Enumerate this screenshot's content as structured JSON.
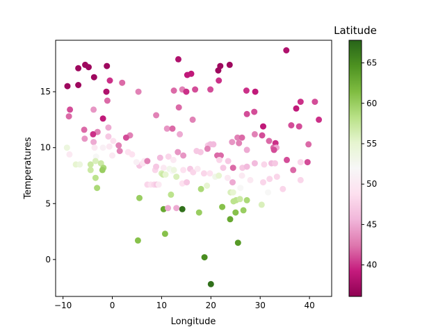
{
  "chart_data": {
    "type": "scatter",
    "xlabel": "Longitude",
    "ylabel": "Temperatures",
    "xlim": [
      -11.5,
      44.5
    ],
    "ylim": [
      -3.3,
      19.6
    ],
    "xticks": [
      -10,
      0,
      10,
      20,
      30,
      40
    ],
    "yticks": [
      0,
      5,
      10,
      15
    ],
    "grid": false,
    "colorbar": {
      "label": "Latitude",
      "cmap": "PiYG",
      "range": [
        36.1,
        67.8
      ],
      "ticks": [
        40,
        45,
        50,
        55,
        60,
        65
      ],
      "color_stops": [
        "#8e0152",
        "#c51b7d",
        "#de77ae",
        "#f1b6da",
        "#fde0ef",
        "#f7f7f7",
        "#e6f5d0",
        "#b8e186",
        "#7fbc41",
        "#4d9221",
        "#276419"
      ]
    },
    "points": [
      {
        "x": 35.3,
        "y": 18.7,
        "c": 38
      },
      {
        "x": 13.4,
        "y": 17.9,
        "c": 38
      },
      {
        "x": 23.8,
        "y": 17.4,
        "c": 37
      },
      {
        "x": 21.9,
        "y": 17.3,
        "c": 37
      },
      {
        "x": -5.5,
        "y": 17.4,
        "c": 37
      },
      {
        "x": -4.8,
        "y": 17.2,
        "c": 37
      },
      {
        "x": -6.9,
        "y": 17.1,
        "c": 37
      },
      {
        "x": -1.1,
        "y": 17.3,
        "c": 37
      },
      {
        "x": 21.5,
        "y": 16.9,
        "c": 37
      },
      {
        "x": 15.2,
        "y": 16.5,
        "c": 39
      },
      {
        "x": 16.0,
        "y": 16.6,
        "c": 39
      },
      {
        "x": -3.7,
        "y": 16.3,
        "c": 37
      },
      {
        "x": -0.5,
        "y": 16.0,
        "c": 40
      },
      {
        "x": 21.6,
        "y": 16.0,
        "c": 40
      },
      {
        "x": 2.0,
        "y": 15.8,
        "c": 42
      },
      {
        "x": -9.1,
        "y": 15.5,
        "c": 37
      },
      {
        "x": -6.9,
        "y": 15.6,
        "c": 37
      },
      {
        "x": 12.5,
        "y": 15.1,
        "c": 42
      },
      {
        "x": 14.2,
        "y": 15.2,
        "c": 43
      },
      {
        "x": 15.0,
        "y": 15.0,
        "c": 40
      },
      {
        "x": 16.8,
        "y": 15.2,
        "c": 41
      },
      {
        "x": 19.9,
        "y": 15.2,
        "c": 41
      },
      {
        "x": 27.2,
        "y": 15.1,
        "c": 40
      },
      {
        "x": 29.0,
        "y": 15.0,
        "c": 39
      },
      {
        "x": 5.3,
        "y": 15.0,
        "c": 43
      },
      {
        "x": -1.2,
        "y": 15.0,
        "c": 38
      },
      {
        "x": 38.2,
        "y": 14.1,
        "c": 40
      },
      {
        "x": 41.1,
        "y": 14.1,
        "c": 41
      },
      {
        "x": -1.0,
        "y": 14.2,
        "c": 42
      },
      {
        "x": 13.5,
        "y": 13.6,
        "c": 42
      },
      {
        "x": 37.3,
        "y": 13.5,
        "c": 39
      },
      {
        "x": -8.6,
        "y": 13.4,
        "c": 41
      },
      {
        "x": -3.8,
        "y": 13.4,
        "c": 44
      },
      {
        "x": 28.8,
        "y": 13.2,
        "c": 41
      },
      {
        "x": 27.3,
        "y": 13.0,
        "c": 41
      },
      {
        "x": 8.9,
        "y": 12.9,
        "c": 43
      },
      {
        "x": -8.8,
        "y": 12.8,
        "c": 42
      },
      {
        "x": -1.9,
        "y": 12.6,
        "c": 39
      },
      {
        "x": 16.3,
        "y": 12.5,
        "c": 43
      },
      {
        "x": 41.9,
        "y": 12.5,
        "c": 40
      },
      {
        "x": 36.3,
        "y": 12.0,
        "c": 41
      },
      {
        "x": 37.9,
        "y": 11.9,
        "c": 41
      },
      {
        "x": -0.8,
        "y": 11.8,
        "c": 45
      },
      {
        "x": 30.6,
        "y": 11.9,
        "c": 39
      },
      {
        "x": 11.1,
        "y": 11.7,
        "c": 44
      },
      {
        "x": 12.2,
        "y": 11.7,
        "c": 42
      },
      {
        "x": -5.7,
        "y": 11.6,
        "c": 42
      },
      {
        "x": -3.0,
        "y": 11.4,
        "c": 43
      },
      {
        "x": 13.7,
        "y": 11.2,
        "c": 45
      },
      {
        "x": -3.9,
        "y": 11.2,
        "c": 40
      },
      {
        "x": 3.6,
        "y": 11.1,
        "c": 43
      },
      {
        "x": 28.9,
        "y": 11.2,
        "c": 43
      },
      {
        "x": 25.4,
        "y": 10.9,
        "c": 43
      },
      {
        "x": 26.3,
        "y": 10.9,
        "c": 42
      },
      {
        "x": 30.4,
        "y": 11.1,
        "c": 41
      },
      {
        "x": 2.8,
        "y": 10.9,
        "c": 41
      },
      {
        "x": -0.8,
        "y": 11.0,
        "c": 47
      },
      {
        "x": 31.8,
        "y": 10.6,
        "c": 42
      },
      {
        "x": 25.7,
        "y": 10.4,
        "c": 43
      },
      {
        "x": 24.3,
        "y": 10.5,
        "c": 44
      },
      {
        "x": 33.1,
        "y": 10.4,
        "c": 40
      },
      {
        "x": 39.8,
        "y": 10.3,
        "c": 42
      },
      {
        "x": -5.6,
        "y": 10.8,
        "c": 44
      },
      {
        "x": 0.2,
        "y": 10.6,
        "c": 49
      },
      {
        "x": -3.8,
        "y": 10.5,
        "c": 45
      },
      {
        "x": 1.3,
        "y": 10.2,
        "c": 43
      },
      {
        "x": 19.4,
        "y": 10.2,
        "c": 47
      },
      {
        "x": 19.9,
        "y": 10.3,
        "c": 46
      },
      {
        "x": 20.5,
        "y": 10.3,
        "c": 46
      },
      {
        "x": 19.3,
        "y": 9.9,
        "c": 43
      },
      {
        "x": 32.7,
        "y": 10.0,
        "c": 42
      },
      {
        "x": 33.3,
        "y": 10.0,
        "c": 45
      },
      {
        "x": 32.8,
        "y": 9.8,
        "c": 41
      },
      {
        "x": 27.3,
        "y": 9.8,
        "c": 45
      },
      {
        "x": -9.2,
        "y": 10.0,
        "c": 54
      },
      {
        "x": -3.6,
        "y": 10.0,
        "c": 50
      },
      {
        "x": -1.9,
        "y": 10.0,
        "c": 51
      },
      {
        "x": -0.6,
        "y": 10.1,
        "c": 50
      },
      {
        "x": 1.5,
        "y": 9.7,
        "c": 43
      },
      {
        "x": 3.2,
        "y": 9.6,
        "c": 49
      },
      {
        "x": 17.1,
        "y": 9.7,
        "c": 47
      },
      {
        "x": 17.9,
        "y": 9.6,
        "c": 47
      },
      {
        "x": 13.3,
        "y": 9.6,
        "c": 44
      },
      {
        "x": 14.4,
        "y": 9.3,
        "c": 44
      },
      {
        "x": 21.3,
        "y": 9.3,
        "c": 42
      },
      {
        "x": 22.0,
        "y": 9.3,
        "c": 42
      },
      {
        "x": -8.7,
        "y": 9.4,
        "c": 50
      },
      {
        "x": -3.3,
        "y": 9.2,
        "c": 52
      },
      {
        "x": 0.0,
        "y": 9.3,
        "c": 50
      },
      {
        "x": 4.0,
        "y": 9.4,
        "c": 49
      },
      {
        "x": 9.7,
        "y": 9.1,
        "c": 46
      },
      {
        "x": 11.4,
        "y": 9.2,
        "c": 48
      },
      {
        "x": 12.4,
        "y": 8.9,
        "c": 50
      },
      {
        "x": 21.7,
        "y": 8.9,
        "c": 48
      },
      {
        "x": 23.5,
        "y": 8.8,
        "c": 47
      },
      {
        "x": 35.4,
        "y": 8.9,
        "c": 41
      },
      {
        "x": 39.6,
        "y": 8.7,
        "c": 41
      },
      {
        "x": 28.9,
        "y": 8.6,
        "c": 46
      },
      {
        "x": 30.8,
        "y": 8.5,
        "c": 48
      },
      {
        "x": 32.3,
        "y": 8.6,
        "c": 46
      },
      {
        "x": 33.0,
        "y": 8.6,
        "c": 47
      },
      {
        "x": 38.2,
        "y": 8.7,
        "c": 48
      },
      {
        "x": 5.5,
        "y": 8.4,
        "c": 47
      },
      {
        "x": 6.2,
        "y": 8.6,
        "c": 49
      },
      {
        "x": 6.5,
        "y": 8.8,
        "c": 50
      },
      {
        "x": 7.1,
        "y": 8.8,
        "c": 43
      },
      {
        "x": 4.9,
        "y": 8.7,
        "c": 51
      },
      {
        "x": -7.4,
        "y": 8.5,
        "c": 55
      },
      {
        "x": -6.6,
        "y": 8.5,
        "c": 54
      },
      {
        "x": -4.4,
        "y": 8.5,
        "c": 57
      },
      {
        "x": -3.4,
        "y": 8.8,
        "c": 56
      },
      {
        "x": -2.3,
        "y": 8.6,
        "c": 57
      },
      {
        "x": -1.8,
        "y": 8.2,
        "c": 59
      },
      {
        "x": -2.0,
        "y": 8.0,
        "c": 60
      },
      {
        "x": -4.4,
        "y": 8.0,
        "c": 57
      },
      {
        "x": 8.7,
        "y": 8.0,
        "c": 48
      },
      {
        "x": 8.9,
        "y": 8.3,
        "c": 47
      },
      {
        "x": 10.4,
        "y": 8.2,
        "c": 50
      },
      {
        "x": 11.6,
        "y": 8.1,
        "c": 53
      },
      {
        "x": 12.2,
        "y": 7.9,
        "c": 52
      },
      {
        "x": 12.5,
        "y": 8.0,
        "c": 54
      },
      {
        "x": 14.4,
        "y": 8.0,
        "c": 49
      },
      {
        "x": 15.8,
        "y": 8.1,
        "c": 47
      },
      {
        "x": 16.4,
        "y": 7.8,
        "c": 48
      },
      {
        "x": 17.3,
        "y": 8.1,
        "c": 50
      },
      {
        "x": 18.6,
        "y": 7.7,
        "c": 48
      },
      {
        "x": 19.8,
        "y": 7.7,
        "c": 49
      },
      {
        "x": 22.5,
        "y": 8.2,
        "c": 47
      },
      {
        "x": 24.5,
        "y": 8.2,
        "c": 42
      },
      {
        "x": 26.4,
        "y": 8.2,
        "c": 47
      },
      {
        "x": 27.3,
        "y": 8.3,
        "c": 46
      },
      {
        "x": 36.7,
        "y": 8.0,
        "c": 42
      },
      {
        "x": 10.0,
        "y": 7.7,
        "c": 56
      },
      {
        "x": 10.3,
        "y": 7.6,
        "c": 57
      },
      {
        "x": 10.8,
        "y": 7.6,
        "c": 55
      },
      {
        "x": 13.0,
        "y": 7.4,
        "c": 56
      },
      {
        "x": 20.9,
        "y": 7.4,
        "c": 53
      },
      {
        "x": 21.6,
        "y": 7.5,
        "c": 55
      },
      {
        "x": 23.4,
        "y": 7.3,
        "c": 50
      },
      {
        "x": 24.4,
        "y": 6.9,
        "c": 45
      },
      {
        "x": 26.3,
        "y": 7.5,
        "c": 50
      },
      {
        "x": 28.0,
        "y": 7.1,
        "c": 50
      },
      {
        "x": 30.6,
        "y": 6.9,
        "c": 48
      },
      {
        "x": 31.9,
        "y": 7.2,
        "c": 48
      },
      {
        "x": 33.4,
        "y": 7.4,
        "c": 48
      },
      {
        "x": 38.2,
        "y": 7.1,
        "c": 48
      },
      {
        "x": -3.4,
        "y": 7.3,
        "c": 58
      },
      {
        "x": -3.1,
        "y": 6.4,
        "c": 59
      },
      {
        "x": 7.1,
        "y": 6.7,
        "c": 48
      },
      {
        "x": 7.8,
        "y": 6.7,
        "c": 49
      },
      {
        "x": 8.5,
        "y": 6.7,
        "c": 48
      },
      {
        "x": 9.0,
        "y": 6.7,
        "c": 47
      },
      {
        "x": 9.4,
        "y": 6.7,
        "c": 50
      },
      {
        "x": 14.2,
        "y": 6.8,
        "c": 49
      },
      {
        "x": 15.1,
        "y": 6.9,
        "c": 47
      },
      {
        "x": 18.0,
        "y": 6.3,
        "c": 59
      },
      {
        "x": 19.2,
        "y": 6.6,
        "c": 55
      },
      {
        "x": 24.0,
        "y": 6.0,
        "c": 56
      },
      {
        "x": 24.5,
        "y": 6.0,
        "c": 55
      },
      {
        "x": 26.0,
        "y": 6.4,
        "c": 52
      },
      {
        "x": 31.6,
        "y": 6.0,
        "c": 52
      },
      {
        "x": 34.6,
        "y": 6.3,
        "c": 48
      },
      {
        "x": 5.5,
        "y": 5.5,
        "c": 60
      },
      {
        "x": 11.9,
        "y": 5.8,
        "c": 58
      },
      {
        "x": 24.6,
        "y": 5.2,
        "c": 58
      },
      {
        "x": 25.1,
        "y": 5.3,
        "c": 58
      },
      {
        "x": 25.9,
        "y": 5.4,
        "c": 57
      },
      {
        "x": 27.3,
        "y": 5.3,
        "c": 59
      },
      {
        "x": 30.3,
        "y": 4.9,
        "c": 56
      },
      {
        "x": 10.4,
        "y": 4.5,
        "c": 63
      },
      {
        "x": 11.3,
        "y": 4.6,
        "c": 45
      },
      {
        "x": 13.0,
        "y": 4.6,
        "c": 45
      },
      {
        "x": 14.2,
        "y": 4.5,
        "c": 67
      },
      {
        "x": 17.6,
        "y": 4.2,
        "c": 60
      },
      {
        "x": 22.3,
        "y": 4.7,
        "c": 61
      },
      {
        "x": 25.0,
        "y": 4.2,
        "c": 61
      },
      {
        "x": 26.6,
        "y": 4.4,
        "c": 60
      },
      {
        "x": 23.9,
        "y": 3.6,
        "c": 63
      },
      {
        "x": 10.7,
        "y": 2.3,
        "c": 61
      },
      {
        "x": 5.2,
        "y": 1.7,
        "c": 61
      },
      {
        "x": 25.5,
        "y": 1.5,
        "c": 64
      },
      {
        "x": 18.7,
        "y": 0.2,
        "c": 65
      },
      {
        "x": 20.0,
        "y": -2.2,
        "c": 67
      }
    ]
  }
}
